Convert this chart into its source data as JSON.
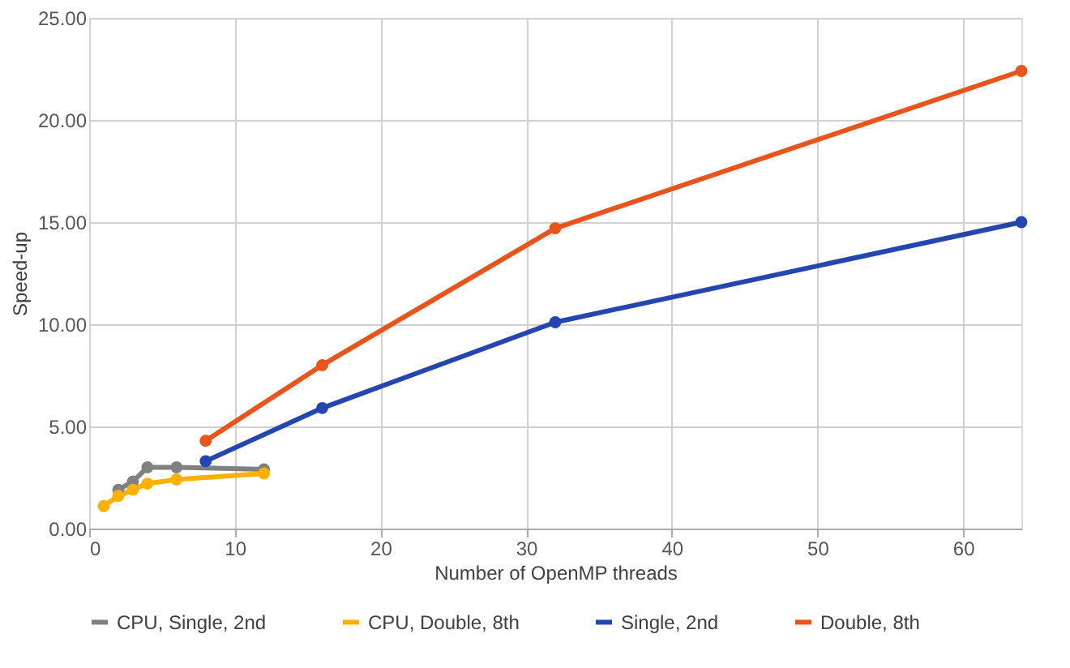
{
  "chart_data": {
    "type": "line",
    "xlabel": "Number of OpenMP threads",
    "ylabel": "Speed-up",
    "xlim": [
      0,
      64
    ],
    "xticks": [
      0,
      10,
      20,
      30,
      40,
      50,
      60
    ],
    "ylim": [
      0,
      25
    ],
    "yticks": [
      {
        "value": 0,
        "label": "0.00"
      },
      {
        "value": 5,
        "label": "5.00"
      },
      {
        "value": 10,
        "label": "10.00"
      },
      {
        "value": 15,
        "label": "15.00"
      },
      {
        "value": 20,
        "label": "20.00"
      },
      {
        "value": 25,
        "label": "25.00"
      }
    ],
    "grid": true,
    "legend": "bottom",
    "marker": "circle",
    "line_style": "solid",
    "series": [
      {
        "name": "CPU, Single, 2nd",
        "color": "#808080",
        "x": [
          2,
          3,
          4,
          6,
          12
        ],
        "values": [
          1.9,
          2.3,
          3.0,
          3.0,
          2.9
        ]
      },
      {
        "name": "CPU, Double, 8th",
        "color": "#ffb000",
        "x": [
          1,
          2,
          3,
          4,
          6,
          12
        ],
        "values": [
          1.1,
          1.6,
          1.9,
          2.2,
          2.4,
          2.7
        ]
      },
      {
        "name": "Single, 2nd",
        "color": "#2446b0",
        "x": [
          8,
          16,
          32,
          64
        ],
        "values": [
          3.3,
          5.9,
          10.1,
          15.0
        ]
      },
      {
        "name": "Double, 8th",
        "color": "#e8541c",
        "x": [
          8,
          16,
          32,
          64
        ],
        "values": [
          4.3,
          8.0,
          14.7,
          22.4
        ]
      }
    ]
  }
}
